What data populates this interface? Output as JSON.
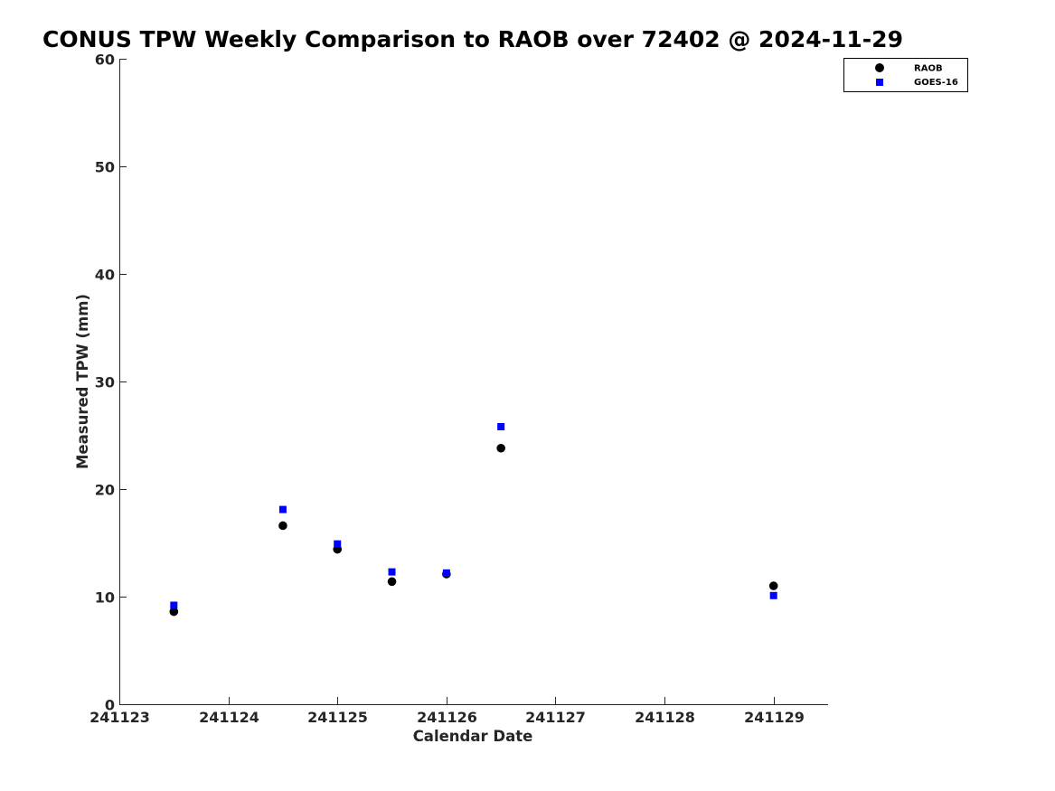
{
  "chart_data": {
    "type": "scatter",
    "title": "CONUS TPW Weekly Comparison to RAOB over 72402 @ 2024-11-29",
    "xlabel": "Calendar Date",
    "ylabel": "Measured TPW (mm)",
    "x_ticks": [
      241123,
      241124,
      241125,
      241126,
      241127,
      241128,
      241129
    ],
    "y_ticks": [
      0,
      10,
      20,
      30,
      40,
      50,
      60
    ],
    "xlim": [
      241123,
      241129.5
    ],
    "ylim": [
      0,
      60
    ],
    "grid": false,
    "legend_position": "top-right",
    "series": [
      {
        "name": "RAOB",
        "marker": "circle",
        "color": "#000000",
        "x": [
          241123.5,
          241124.5,
          241125.0,
          241125.5,
          241126.0,
          241126.5,
          241129.0
        ],
        "y": [
          8.6,
          16.6,
          14.4,
          11.4,
          12.1,
          23.8,
          11.0
        ]
      },
      {
        "name": "GOES-16",
        "marker": "square",
        "color": "#0000ff",
        "x": [
          241123.5,
          241124.5,
          241125.0,
          241125.5,
          241126.0,
          241126.5,
          241129.0
        ],
        "y": [
          9.2,
          18.1,
          14.9,
          12.3,
          12.2,
          25.8,
          10.1
        ]
      }
    ]
  }
}
